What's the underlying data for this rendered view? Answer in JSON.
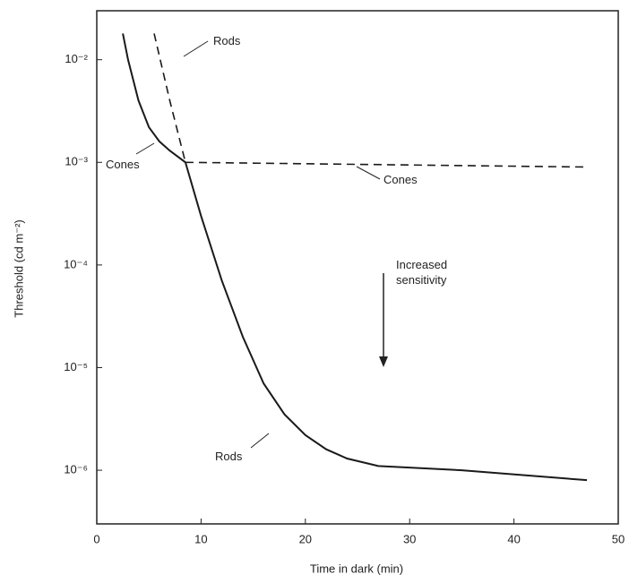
{
  "chart_data": {
    "type": "line",
    "xlabel": "Time in dark (min)",
    "ylabel": "Threshold (cd m⁻²)",
    "xlim": [
      0,
      50
    ],
    "xticks": [
      0,
      10,
      20,
      30,
      40,
      50
    ],
    "ylim": [
      3e-07,
      0.03
    ],
    "yscale": "log",
    "yticks": [
      {
        "value": 0.01,
        "label": "10⁻²"
      },
      {
        "value": 0.001,
        "label": "10⁻³"
      },
      {
        "value": 0.0001,
        "label": "10⁻⁴"
      },
      {
        "value": 1e-05,
        "label": "10⁻⁵"
      },
      {
        "value": 1e-06,
        "label": "10⁻⁶"
      }
    ],
    "series": [
      {
        "color": "#1a1a1a",
        "dashed": false,
        "x": [
          2.5,
          3,
          4,
          5,
          6,
          7,
          8.5,
          10,
          12,
          14,
          16,
          18,
          20,
          22,
          24,
          27,
          35,
          47
        ],
        "values": [
          0.018,
          0.01,
          0.004,
          0.0022,
          0.0016,
          0.0013,
          0.001,
          0.0003,
          7e-05,
          2e-05,
          7e-06,
          3.5e-06,
          2.2e-06,
          1.6e-06,
          1.3e-06,
          1.1e-06,
          1e-06,
          8e-07
        ]
      },
      {
        "color": "#1a1a1a",
        "dashed": true,
        "x": [
          5.5,
          7,
          8.5
        ],
        "values": [
          0.018,
          0.004,
          0.001
        ]
      },
      {
        "color": "#1a1a1a",
        "dashed": true,
        "x": [
          8.5,
          47
        ],
        "values": [
          0.001,
          0.0009
        ]
      }
    ],
    "annotations": [
      "Rods",
      "Cones",
      "Cones",
      "Rods",
      "Increased sensitivity"
    ]
  }
}
